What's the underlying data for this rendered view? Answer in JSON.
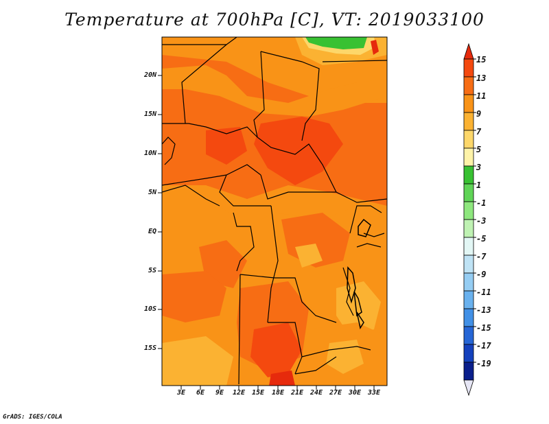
{
  "title": "Temperature at 700hPa [C], VT: 2019033100",
  "credit": "GrADS: IGES/COLA",
  "map": {
    "lat_ticks": [
      "20N",
      "15N",
      "10N",
      "5N",
      "EQ",
      "5S",
      "10S",
      "15S"
    ],
    "lon_ticks": [
      "3E",
      "6E",
      "9E",
      "12E",
      "15E",
      "18E",
      "21E",
      "24E",
      "27E",
      "30E",
      "33E"
    ]
  },
  "colorbar": {
    "labels": [
      "15",
      "13",
      "11",
      "9",
      "7",
      "5",
      "3",
      "1",
      "-1",
      "-3",
      "-5",
      "-7",
      "-9",
      "-11",
      "-13",
      "-15",
      "-17",
      "-19"
    ],
    "colors": [
      "#e62a0c",
      "#f4490f",
      "#f76d14",
      "#f99317",
      "#fbb232",
      "#fdd76a",
      "#fef3a8",
      "#38c132",
      "#5fd456",
      "#8ee77e",
      "#bff2b3",
      "#e3f7f5",
      "#bfe3f5",
      "#95cdf3",
      "#69b1ee",
      "#4190e6",
      "#2666d6",
      "#1441bd",
      "#0a1f8c",
      "#05115c"
    ]
  }
}
